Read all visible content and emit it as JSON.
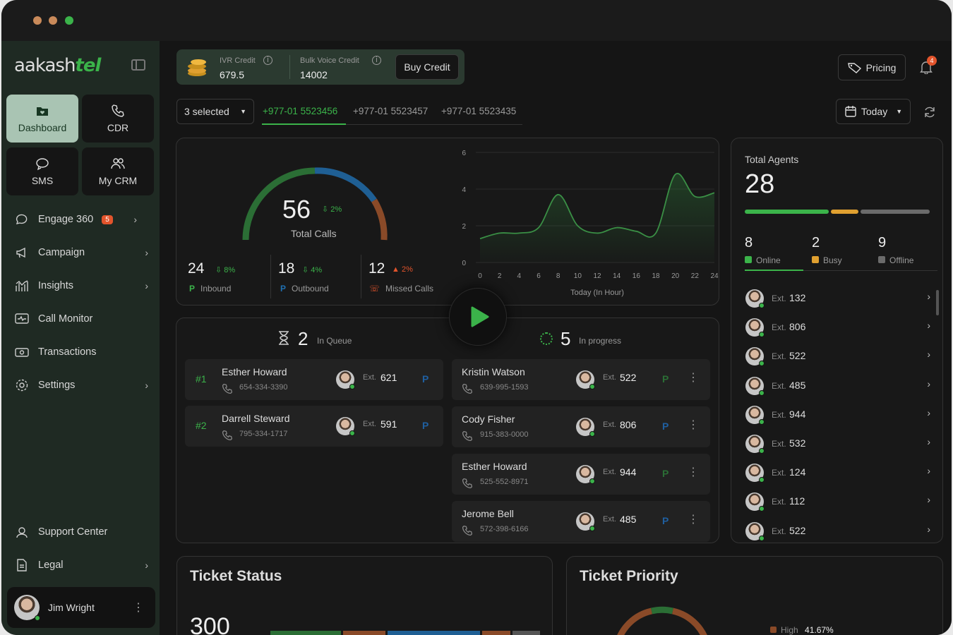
{
  "sidebar": {
    "logo": {
      "main": "aakash",
      "accent": "tel"
    },
    "tiles": [
      {
        "label": "Dashboard",
        "icon": "heart-folder-icon"
      },
      {
        "label": "CDR",
        "icon": "phone-icon"
      },
      {
        "label": "SMS",
        "icon": "sms-icon"
      },
      {
        "label": "My CRM",
        "icon": "users-icon"
      }
    ],
    "nav": [
      {
        "label": "Engage 360",
        "badge": "5"
      },
      {
        "label": "Campaign"
      },
      {
        "label": "Insights"
      },
      {
        "label": "Call Monitor"
      },
      {
        "label": "Transactions"
      },
      {
        "label": "Settings"
      }
    ],
    "bottom": [
      {
        "label": "Support Center"
      },
      {
        "label": "Legal"
      }
    ],
    "user": {
      "name": "Jim Wright"
    }
  },
  "topbar": {
    "ivr": {
      "label": "IVR Credit",
      "value": "679.5"
    },
    "bulk": {
      "label": "Bulk Voice Credit",
      "value": "14002"
    },
    "buy_label": "Buy Credit",
    "pricing_label": "Pricing",
    "notif_count": "4"
  },
  "filter": {
    "selected": "3 selected",
    "numbers": [
      "+977-01 5523456",
      "+977-01 5523457",
      "+977-01 5523435"
    ],
    "date": "Today"
  },
  "calls": {
    "total": "56",
    "total_change": "2%",
    "total_label": "Total Calls",
    "inbound": {
      "value": "24",
      "change": "8%",
      "label": "Inbound"
    },
    "outbound": {
      "value": "18",
      "change": "4%",
      "label": "Outbound"
    },
    "missed": {
      "value": "12",
      "change": "2%",
      "label": "Missed Calls"
    }
  },
  "chart_data": {
    "type": "area",
    "xlabel": "Today (In Hour)",
    "x": [
      0,
      2,
      4,
      6,
      8,
      10,
      12,
      14,
      16,
      18,
      20,
      22,
      24
    ],
    "y": [
      1.3,
      1.6,
      1.6,
      1.9,
      3.7,
      2.0,
      1.6,
      1.9,
      1.7,
      1.6,
      4.8,
      3.6,
      3.8
    ],
    "ylim": [
      0,
      6
    ],
    "yticks": [
      "0",
      "2",
      "4",
      "6"
    ],
    "xticks": [
      "0",
      "2",
      "4",
      "6",
      "8",
      "10",
      "12",
      "14",
      "16",
      "18",
      "20",
      "22",
      "24"
    ]
  },
  "queue": {
    "count": "2",
    "label": "In Queue",
    "items": [
      {
        "rank": "#1",
        "name": "Esther Howard",
        "phone": "654-334-3390",
        "ext_label": "Ext.",
        "ext": "621"
      },
      {
        "rank": "#2",
        "name": "Darrell Steward",
        "phone": "795-334-1717",
        "ext_label": "Ext.",
        "ext": "591"
      }
    ]
  },
  "progress": {
    "count": "5",
    "label": "In progress",
    "items": [
      {
        "name": "Kristin Watson",
        "phone": "639-995-1593",
        "ext_label": "Ext.",
        "ext": "522",
        "tag": "P",
        "tag_color": "#2b6e35"
      },
      {
        "name": "Cody Fisher",
        "phone": "915-383-0000",
        "ext_label": "Ext.",
        "ext": "806",
        "tag": "P",
        "tag_color": "#1f5fa0"
      },
      {
        "name": "Esther Howard",
        "phone": "525-552-8971",
        "ext_label": "Ext.",
        "ext": "944",
        "tag": "P",
        "tag_color": "#2b6e35"
      },
      {
        "name": "Jerome Bell",
        "phone": "572-398-6166",
        "ext_label": "Ext.",
        "ext": "485",
        "tag": "P",
        "tag_color": "#1f5fa0"
      }
    ]
  },
  "agents": {
    "title": "Total Agents",
    "total": "28",
    "online": {
      "value": "8",
      "label": "Online"
    },
    "busy": {
      "value": "2",
      "label": "Busy"
    },
    "offline": {
      "value": "9",
      "label": "Offline"
    },
    "list": [
      {
        "ext_label": "Ext.",
        "ext": "132"
      },
      {
        "ext_label": "Ext.",
        "ext": "806"
      },
      {
        "ext_label": "Ext.",
        "ext": "522"
      },
      {
        "ext_label": "Ext.",
        "ext": "485"
      },
      {
        "ext_label": "Ext.",
        "ext": "944"
      },
      {
        "ext_label": "Ext.",
        "ext": "532"
      },
      {
        "ext_label": "Ext.",
        "ext": "124"
      },
      {
        "ext_label": "Ext.",
        "ext": "112"
      },
      {
        "ext_label": "Ext.",
        "ext": "522"
      }
    ]
  },
  "ticket_status": {
    "title": "Ticket Status",
    "value": "300"
  },
  "ticket_priority": {
    "title": "Ticket Priority",
    "legend_label": "High",
    "legend_value": "41.67%"
  },
  "colors": {
    "accent": "#3bb34a",
    "busy": "#e0a030",
    "offline": "#6b6b6b",
    "missed": "#e2542c",
    "blue": "#1f6fb0"
  }
}
